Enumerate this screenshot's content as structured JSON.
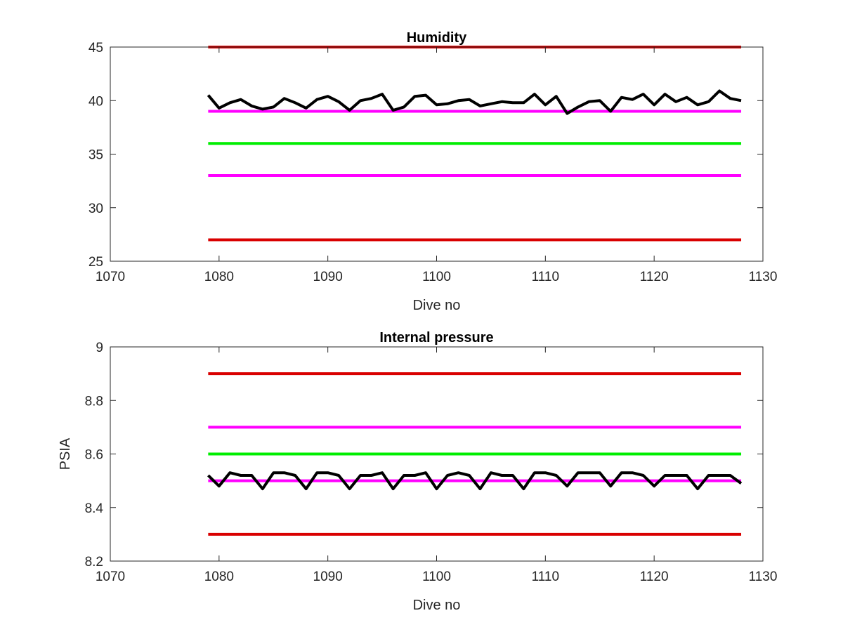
{
  "colors": {
    "data_line": "#000000",
    "red_limit": "#d90000",
    "magenta_limit": "#ff00ff",
    "green_target": "#00ee00",
    "axes": "#262626"
  },
  "chart_data": [
    {
      "type": "line",
      "title": "Humidity",
      "xlabel": "Dive no",
      "ylabel": "",
      "xlim": [
        1070,
        1130
      ],
      "ylim": [
        25,
        45
      ],
      "xticks": [
        1070,
        1080,
        1090,
        1100,
        1110,
        1120,
        1130
      ],
      "yticks": [
        25,
        30,
        35,
        40,
        45
      ],
      "xtick_labels": [
        "1070",
        "1080",
        "1090",
        "1100",
        "1110",
        "1120",
        "1130"
      ],
      "ytick_labels": [
        "25",
        "30",
        "35",
        "40",
        "45"
      ],
      "grid": false,
      "reference_lines": [
        {
          "y": 45,
          "x": [
            1079,
            1128
          ],
          "color": "red"
        },
        {
          "y": 39,
          "x": [
            1079,
            1128
          ],
          "color": "magenta"
        },
        {
          "y": 36,
          "x": [
            1079,
            1128
          ],
          "color": "green"
        },
        {
          "y": 33,
          "x": [
            1079,
            1128
          ],
          "color": "magenta"
        },
        {
          "y": 27,
          "x": [
            1079,
            1128
          ],
          "color": "red"
        }
      ],
      "series": [
        {
          "x": [
            1079,
            1080,
            1081,
            1082,
            1083,
            1084,
            1085,
            1086,
            1087,
            1088,
            1089,
            1090,
            1091,
            1092,
            1093,
            1094,
            1095,
            1096,
            1097,
            1098,
            1099,
            1100,
            1101,
            1102,
            1103,
            1104,
            1105,
            1106,
            1107,
            1108,
            1109,
            1110,
            1111,
            1112,
            1113,
            1114,
            1115,
            1116,
            1117,
            1118,
            1119,
            1120,
            1121,
            1122,
            1123,
            1124,
            1125,
            1126,
            1127,
            1128
          ],
          "values": [
            40.5,
            39.3,
            39.8,
            40.1,
            39.5,
            39.2,
            39.4,
            40.2,
            39.8,
            39.3,
            40.1,
            40.4,
            39.9,
            39.1,
            40.0,
            40.2,
            40.6,
            39.1,
            39.4,
            40.4,
            40.5,
            39.6,
            39.7,
            40.0,
            40.1,
            39.5,
            39.7,
            39.9,
            39.8,
            39.8,
            40.6,
            39.6,
            40.4,
            38.8,
            39.4,
            39.9,
            40.0,
            39.0,
            40.3,
            40.1,
            40.6,
            39.6,
            40.6,
            39.9,
            40.3,
            39.6,
            39.9,
            40.9,
            40.2,
            40.0
          ]
        }
      ]
    },
    {
      "type": "line",
      "title": "Internal pressure",
      "xlabel": "Dive no",
      "ylabel": "PSIA",
      "xlim": [
        1070,
        1130
      ],
      "ylim": [
        8.2,
        9
      ],
      "xticks": [
        1070,
        1080,
        1090,
        1100,
        1110,
        1120,
        1130
      ],
      "yticks": [
        8.2,
        8.4,
        8.6,
        8.8,
        9
      ],
      "xtick_labels": [
        "1070",
        "1080",
        "1090",
        "1100",
        "1110",
        "1120",
        "1130"
      ],
      "ytick_labels": [
        "8.2",
        "8.4",
        "8.6",
        "8.8",
        "9"
      ],
      "grid": false,
      "reference_lines": [
        {
          "y": 8.9,
          "x": [
            1079,
            1128
          ],
          "color": "red"
        },
        {
          "y": 8.7,
          "x": [
            1079,
            1128
          ],
          "color": "magenta"
        },
        {
          "y": 8.6,
          "x": [
            1079,
            1128
          ],
          "color": "green"
        },
        {
          "y": 8.5,
          "x": [
            1079,
            1128
          ],
          "color": "magenta"
        },
        {
          "y": 8.3,
          "x": [
            1079,
            1128
          ],
          "color": "red"
        }
      ],
      "series": [
        {
          "x": [
            1079,
            1080,
            1081,
            1082,
            1083,
            1084,
            1085,
            1086,
            1087,
            1088,
            1089,
            1090,
            1091,
            1092,
            1093,
            1094,
            1095,
            1096,
            1097,
            1098,
            1099,
            1100,
            1101,
            1102,
            1103,
            1104,
            1105,
            1106,
            1107,
            1108,
            1109,
            1110,
            1111,
            1112,
            1113,
            1114,
            1115,
            1116,
            1117,
            1118,
            1119,
            1120,
            1121,
            1122,
            1123,
            1124,
            1125,
            1126,
            1127,
            1128
          ],
          "values": [
            8.52,
            8.48,
            8.53,
            8.52,
            8.52,
            8.47,
            8.53,
            8.53,
            8.52,
            8.47,
            8.53,
            8.53,
            8.52,
            8.47,
            8.52,
            8.52,
            8.53,
            8.47,
            8.52,
            8.52,
            8.53,
            8.47,
            8.52,
            8.53,
            8.52,
            8.47,
            8.53,
            8.52,
            8.52,
            8.47,
            8.53,
            8.53,
            8.52,
            8.48,
            8.53,
            8.53,
            8.53,
            8.48,
            8.53,
            8.53,
            8.52,
            8.48,
            8.52,
            8.52,
            8.52,
            8.47,
            8.52,
            8.52,
            8.52,
            8.49
          ]
        }
      ]
    }
  ]
}
